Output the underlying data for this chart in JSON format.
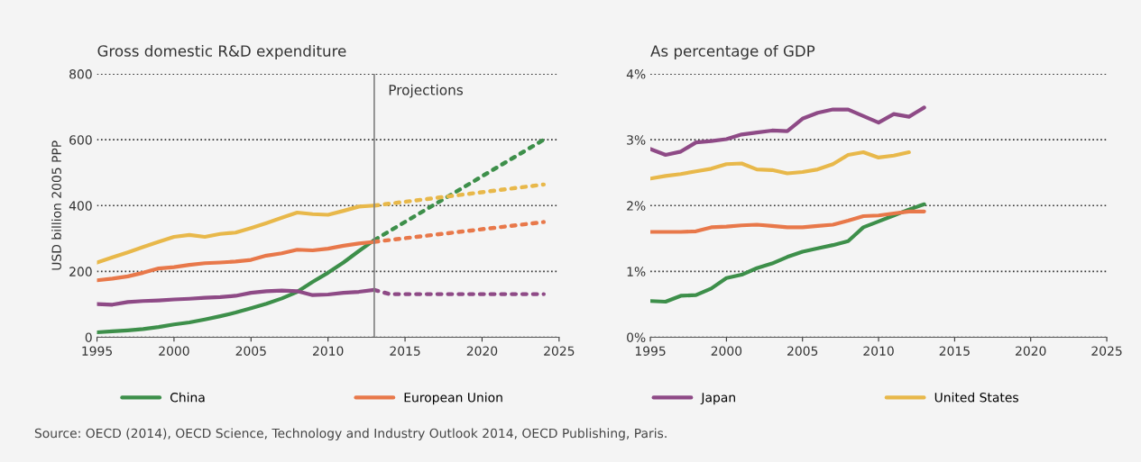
{
  "chart_data": [
    {
      "type": "line",
      "title": "Gross domestic R&D expenditure",
      "ylabel": "USD billion 2005 PPP",
      "x": [
        1995,
        1996,
        1997,
        1998,
        1999,
        2000,
        2001,
        2002,
        2003,
        2004,
        2005,
        2006,
        2007,
        2008,
        2009,
        2010,
        2011,
        2012,
        2013
      ],
      "series": [
        {
          "name": "China",
          "color": "#3d8f4a",
          "values": [
            15,
            18,
            21,
            25,
            31,
            39,
            45,
            54,
            64,
            75,
            88,
            102,
            118,
            138,
            168,
            196,
            227,
            262,
            295
          ]
        },
        {
          "name": "European Union",
          "color": "#e8784a",
          "values": [
            173,
            178,
            185,
            196,
            209,
            213,
            220,
            225,
            227,
            230,
            235,
            248,
            255,
            266,
            264,
            269,
            278,
            285,
            290
          ]
        },
        {
          "name": "Japan",
          "color": "#8e4a86",
          "values": [
            101,
            99,
            107,
            110,
            112,
            115,
            117,
            120,
            122,
            126,
            135,
            140,
            142,
            140,
            128,
            130,
            135,
            138,
            144
          ]
        },
        {
          "name": "United States",
          "color": "#e8b84a",
          "values": [
            227,
            243,
            258,
            274,
            290,
            305,
            311,
            305,
            314,
            318,
            332,
            347,
            363,
            379,
            374,
            372,
            384,
            397,
            400
          ]
        },
        {
          "color": "#3d8f4a",
          "line_style": "dotted",
          "x": [
            2013,
            2024
          ],
          "values": [
            295,
            600
          ]
        },
        {
          "color": "#e8784a",
          "line_style": "dotted",
          "x": [
            2013,
            2024
          ],
          "values": [
            290,
            350
          ]
        },
        {
          "color": "#8e4a86",
          "line_style": "dotted",
          "x": [
            2013,
            2014,
            2024
          ],
          "values": [
            144,
            131,
            131
          ]
        },
        {
          "color": "#e8b84a",
          "line_style": "dotted",
          "x": [
            2013,
            2024
          ],
          "values": [
            400,
            464
          ]
        }
      ],
      "xlim": [
        1995,
        2025
      ],
      "xticks": [
        1995,
        2000,
        2005,
        2010,
        2015,
        2020,
        2025
      ],
      "ylim": [
        0,
        800
      ],
      "yticks": [
        0,
        200,
        400,
        600,
        800
      ],
      "ref_lines": [
        {
          "axis": "x",
          "value": 2013,
          "label": "Projections",
          "color": "#808080"
        }
      ],
      "grid": "y",
      "legend": "bottom",
      "line_style": "solid",
      "marker": "none",
      "annotations": [
        "Source: OECD (2014), OECD Science, Technology and Industry Outlook 2014, OECD Publishing, Paris."
      ]
    },
    {
      "type": "line",
      "title": "As percentage of GDP",
      "x": [
        1995,
        1996,
        1997,
        1998,
        1999,
        2000,
        2001,
        2002,
        2003,
        2004,
        2005,
        2006,
        2007,
        2008,
        2009,
        2010,
        2011,
        2012,
        2013
      ],
      "series": [
        {
          "name": "China",
          "color": "#3d8f4a",
          "values": [
            0.55,
            0.54,
            0.63,
            0.64,
            0.74,
            0.9,
            0.95,
            1.05,
            1.12,
            1.22,
            1.3,
            1.35,
            1.4,
            1.46,
            1.67,
            1.76,
            1.85,
            1.94,
            2.02
          ]
        },
        {
          "name": "European Union",
          "color": "#e8784a",
          "values": [
            1.6,
            1.6,
            1.6,
            1.61,
            1.67,
            1.68,
            1.7,
            1.71,
            1.69,
            1.67,
            1.67,
            1.69,
            1.71,
            1.77,
            1.84,
            1.85,
            1.88,
            1.91,
            1.91
          ]
        },
        {
          "name": "Japan",
          "color": "#8e4a86",
          "values": [
            2.86,
            2.77,
            2.82,
            2.96,
            2.98,
            3.01,
            3.08,
            3.11,
            3.14,
            3.13,
            3.32,
            3.41,
            3.46,
            3.46,
            3.36,
            3.26,
            3.39,
            3.35,
            3.49
          ]
        },
        {
          "name": "United States",
          "color": "#e8b84a",
          "values": [
            2.41,
            2.45,
            2.48,
            2.52,
            2.56,
            2.63,
            2.64,
            2.55,
            2.54,
            2.49,
            2.51,
            2.55,
            2.63,
            2.77,
            2.81,
            2.73,
            2.76,
            2.81,
            null
          ]
        }
      ],
      "xlim": [
        1995,
        2025
      ],
      "xticks": [
        1995,
        2000,
        2005,
        2010,
        2015,
        2020,
        2025
      ],
      "ylim": [
        0,
        4
      ],
      "yticks": [
        {
          "value": 0,
          "label": "0%"
        },
        {
          "value": 1,
          "label": "1%"
        },
        {
          "value": 2,
          "label": "2%"
        },
        {
          "value": 3,
          "label": "3%"
        },
        {
          "value": 4,
          "label": "4%"
        }
      ],
      "grid": "y",
      "legend": "bottom",
      "line_style": "solid",
      "marker": "none"
    }
  ]
}
